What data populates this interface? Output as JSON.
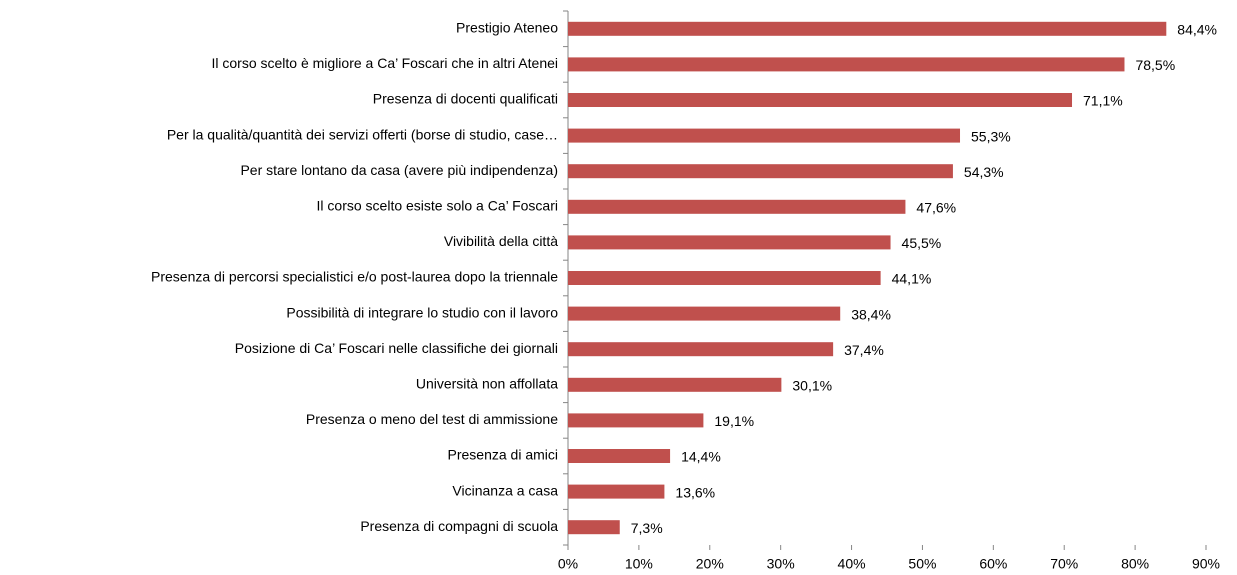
{
  "chart_data": {
    "type": "hbar",
    "categories": [
      "Prestigio Ateneo",
      "Il corso scelto è migliore a Ca’ Foscari che in altri Atenei",
      "Presenza di docenti qualificati",
      "Per la qualità/quantità dei servizi offerti (borse di studio, case…",
      "Per stare lontano da casa (avere più indipendenza)",
      "Il corso scelto esiste solo a Ca’ Foscari",
      "Vivibilità della città",
      "Presenza di percorsi specialistici e/o post-laurea dopo la triennale",
      "Possibilità di integrare lo studio con il lavoro",
      "Posizione di Ca’ Foscari nelle classifiche dei giornali",
      "Università non affollata",
      "Presenza o meno del test di ammissione",
      "Presenza di amici",
      "Vicinanza a casa",
      "Presenza di compagni di scuola"
    ],
    "values": [
      84.4,
      78.5,
      71.1,
      55.3,
      54.3,
      47.6,
      45.5,
      44.1,
      38.4,
      37.4,
      30.1,
      19.1,
      14.4,
      13.6,
      7.3
    ],
    "value_labels": [
      "84,4%",
      "78,5%",
      "71,1%",
      "55,3%",
      "54,3%",
      "47,6%",
      "45,5%",
      "44,1%",
      "38,4%",
      "37,4%",
      "30,1%",
      "19,1%",
      "14,4%",
      "13,6%",
      "7,3%"
    ],
    "color": "#c0504d",
    "xlim": [
      0,
      90
    ],
    "xticks": [
      {
        "value": 0,
        "label": "0%"
      },
      {
        "value": 10,
        "label": "10%"
      },
      {
        "value": 20,
        "label": "20%"
      },
      {
        "value": 30,
        "label": "30%"
      },
      {
        "value": 40,
        "label": "40%"
      },
      {
        "value": 50,
        "label": "50%"
      },
      {
        "value": 60,
        "label": "60%"
      },
      {
        "value": 70,
        "label": "70%"
      },
      {
        "value": 80,
        "label": "80%"
      },
      {
        "value": 90,
        "label": "90%"
      }
    ],
    "grid": false
  }
}
